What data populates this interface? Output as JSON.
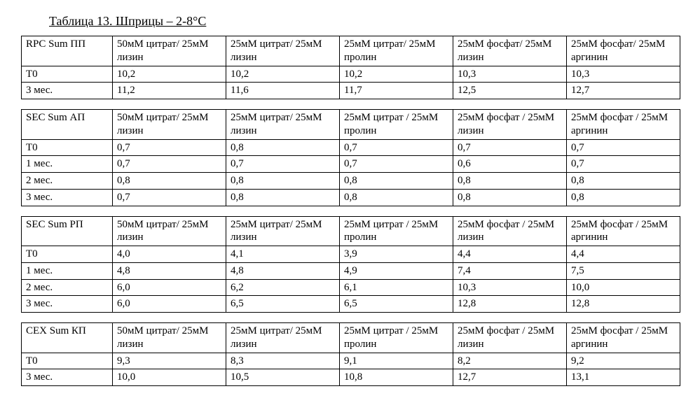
{
  "title": "Таблица 13. Шприцы – 2-8°C",
  "col_count": 6,
  "tables": [
    {
      "header": [
        "RPC Sum ПП",
        "50мМ цитрат/ 25мМ лизин",
        "25мМ цитрат/ 25мМ лизин",
        "25мМ цитрат/ 25мМ пролин",
        "25мМ фосфат/ 25мМ лизин",
        "25мМ фосфат/ 25мМ аргинин"
      ],
      "rows": [
        [
          "T0",
          "10,2",
          "10,2",
          "10,2",
          "10,3",
          "10,3"
        ],
        [
          "3 мес.",
          "11,2",
          "11,6",
          "11,7",
          "12,5",
          "12,7"
        ]
      ]
    },
    {
      "header": [
        "SEC Sum АП",
        "50мМ цитрат/ 25мМ лизин",
        "25мМ цитрат/ 25мМ лизин",
        "25мМ цитрат / 25мМ пролин",
        "25мМ фосфат / 25мМ лизин",
        "25мМ фосфат / 25мМ аргинин"
      ],
      "rows": [
        [
          "T0",
          "0,7",
          "0,8",
          "0,7",
          "0,7",
          "0,7"
        ],
        [
          "1 мес.",
          "0,7",
          "0,7",
          "0,7",
          "0,6",
          "0,7"
        ],
        [
          "2 мес.",
          "0,8",
          "0,8",
          "0,8",
          "0,8",
          "0,8"
        ],
        [
          "3 мес.",
          "0,7",
          "0,8",
          "0,8",
          "0,8",
          "0,8"
        ]
      ]
    },
    {
      "header": [
        "SEC Sum РП",
        "50мМ цитрат/ 25мМ лизин",
        "25мМ цитрат/ 25мМ лизин",
        "25мМ цитрат / 25мМ пролин",
        "25мМ фосфат / 25мМ лизин",
        "25мМ фосфат / 25мМ аргинин"
      ],
      "rows": [
        [
          "T0",
          "4,0",
          "4,1",
          "3,9",
          "4,4",
          "4,4"
        ],
        [
          "1 мес.",
          "4,8",
          "4,8",
          "4,9",
          "7,4",
          "7,5"
        ],
        [
          "2 мес.",
          "6,0",
          "6,2",
          "6,1",
          "10,3",
          "10,0"
        ],
        [
          "3 мес.",
          "6,0",
          "6,5",
          "6,5",
          "12,8",
          "12,8"
        ]
      ]
    },
    {
      "header": [
        "CEX Sum КП",
        "50мМ цитрат/ 25мМ лизин",
        "25мМ цитрат/ 25мМ лизин",
        "25мМ цитрат / 25мМ пролин",
        "25мМ фосфат / 25мМ лизин",
        "25мМ фосфат / 25мМ аргинин"
      ],
      "rows": [
        [
          "T0",
          "9,3",
          "8,3",
          "9,1",
          "8,2",
          "9,2"
        ],
        [
          "3 мес.",
          "10,0",
          "10,5",
          "10,8",
          "12,7",
          "13,1"
        ]
      ]
    }
  ]
}
